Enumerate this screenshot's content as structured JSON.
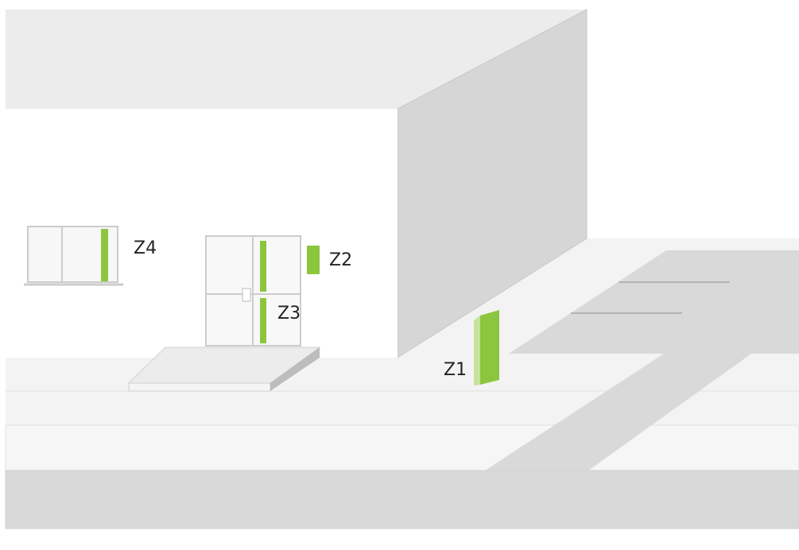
{
  "labels": [
    "Z1",
    "Z2",
    "Z3",
    "Z4"
  ]
}
